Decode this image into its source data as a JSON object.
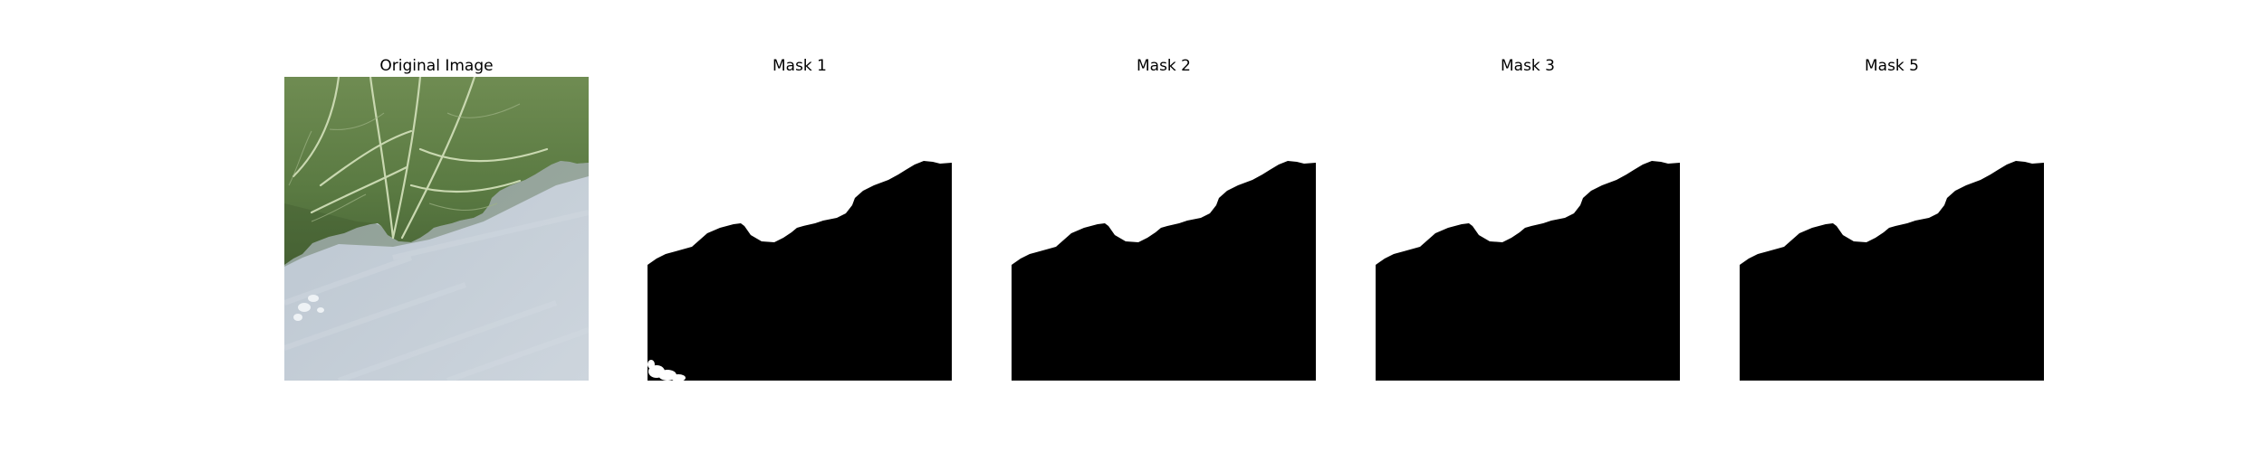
{
  "figure": {
    "panels": [
      {
        "title": "Original Image",
        "kind": "photo"
      },
      {
        "title": "Mask 1",
        "kind": "mask"
      },
      {
        "title": "Mask 2",
        "kind": "mask"
      },
      {
        "title": "Mask 3",
        "kind": "mask"
      },
      {
        "title": "Mask 5",
        "kind": "mask"
      }
    ]
  },
  "colors": {
    "leaf": "#5f7f45",
    "leaf_dark": "#3f5a2e",
    "vein": "#c9d8b0",
    "background_surface": "#c4cdd6",
    "mask_foreground": "#000000",
    "mask_background": "#ffffff"
  }
}
